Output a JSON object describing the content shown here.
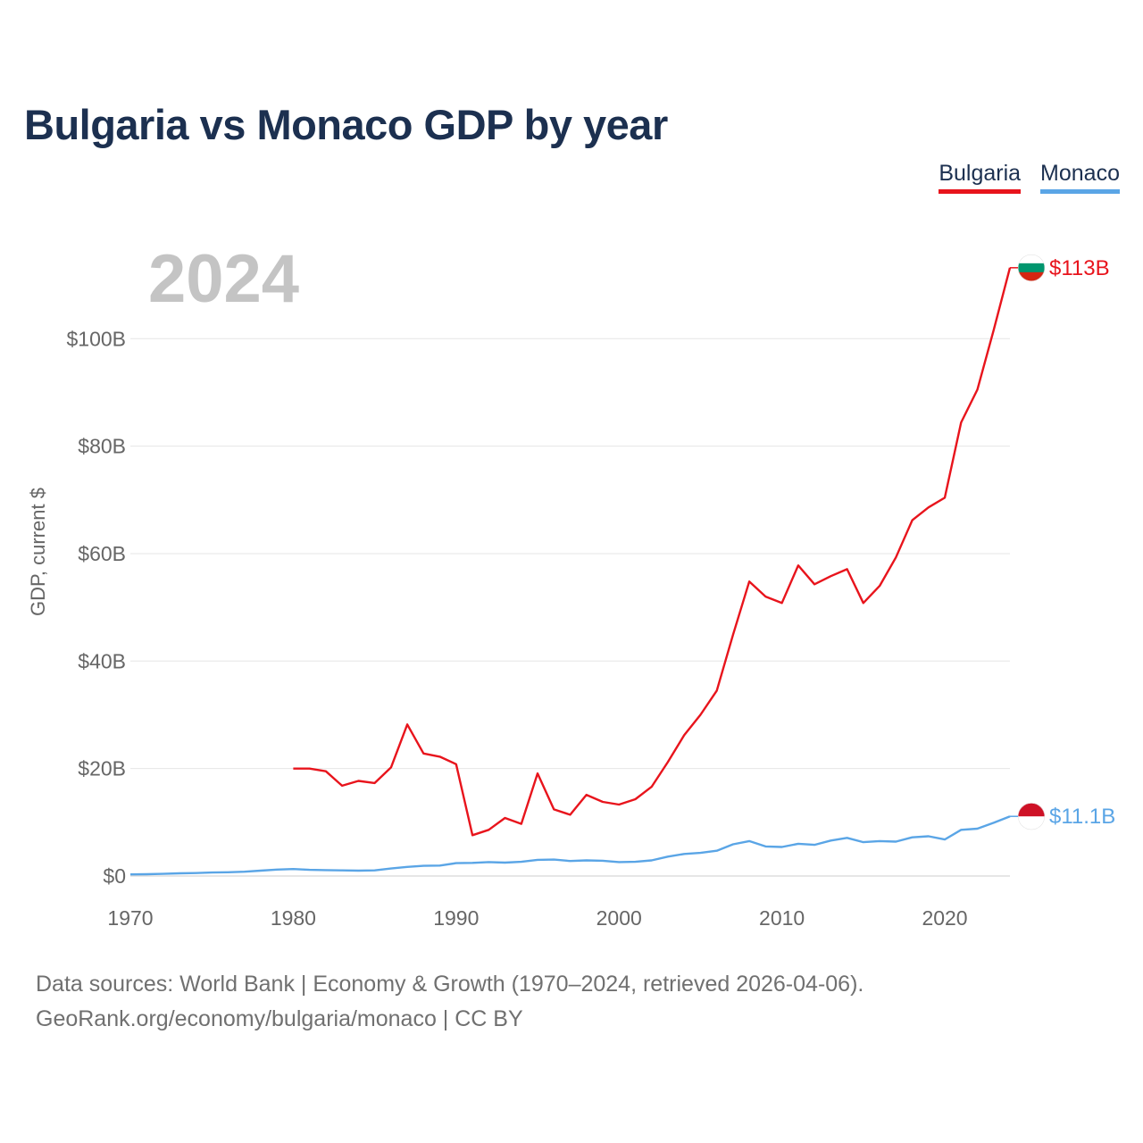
{
  "title": "Bulgaria vs Monaco GDP by year",
  "legend": [
    {
      "label": "Bulgaria",
      "color": "#e8141c"
    },
    {
      "label": "Monaco",
      "color": "#5aa5e6"
    }
  ],
  "year_label": "2024",
  "source_line1": "Data sources: World Bank | Economy & Growth (1970–2024, retrieved 2026-04-06).",
  "source_line2": "GeoRank.org/economy/bulgaria/monaco | CC BY",
  "chart_data": {
    "type": "line",
    "title": "Bulgaria vs Monaco GDP by year",
    "xlabel": "",
    "ylabel": "GDP, current $",
    "xlim": [
      1970,
      2024
    ],
    "ylim": [
      0,
      115
    ],
    "x_ticks": [
      1970,
      1980,
      1990,
      2000,
      2010,
      2020
    ],
    "y_ticks": [
      0,
      20,
      40,
      60,
      80,
      100
    ],
    "y_tick_labels": [
      "$0",
      "$20B",
      "$40B",
      "$60B",
      "$80B",
      "$100B"
    ],
    "series": [
      {
        "name": "Bulgaria",
        "color": "#e8141c",
        "end_label": "$113B",
        "flag": [
          "#ffffff",
          "#00966e",
          "#d62612"
        ],
        "x": [
          1980,
          1981,
          1982,
          1983,
          1984,
          1985,
          1986,
          1987,
          1988,
          1989,
          1990,
          1991,
          1992,
          1993,
          1994,
          1995,
          1996,
          1997,
          1998,
          1999,
          2000,
          2001,
          2002,
          2003,
          2004,
          2005,
          2006,
          2007,
          2008,
          2009,
          2010,
          2011,
          2012,
          2013,
          2014,
          2015,
          2016,
          2017,
          2018,
          2019,
          2020,
          2021,
          2022,
          2023,
          2024
        ],
        "values": [
          20.0,
          20.0,
          19.5,
          16.8,
          17.7,
          17.3,
          20.2,
          28.2,
          22.8,
          22.2,
          20.8,
          7.6,
          8.6,
          10.8,
          9.7,
          19.1,
          12.4,
          11.4,
          15.1,
          13.8,
          13.3,
          14.3,
          16.6,
          21.2,
          26.2,
          30.0,
          34.5,
          44.9,
          54.8,
          52.0,
          50.8,
          57.8,
          54.3,
          55.8,
          57.1,
          50.8,
          54.0,
          59.3,
          66.2,
          68.6,
          70.4,
          84.4,
          90.5,
          101.6,
          113.2
        ]
      },
      {
        "name": "Monaco",
        "color": "#5aa5e6",
        "end_label": "$11.1B",
        "flag": [
          "#ce1126",
          "#ffffff"
        ],
        "x": [
          1970,
          1971,
          1972,
          1973,
          1974,
          1975,
          1976,
          1977,
          1978,
          1979,
          1980,
          1981,
          1982,
          1983,
          1984,
          1985,
          1986,
          1987,
          1988,
          1989,
          1990,
          1991,
          1992,
          1993,
          1994,
          1995,
          1996,
          1997,
          1998,
          1999,
          2000,
          2001,
          2002,
          2003,
          2004,
          2005,
          2006,
          2007,
          2008,
          2009,
          2010,
          2011,
          2012,
          2013,
          2014,
          2015,
          2016,
          2017,
          2018,
          2019,
          2020,
          2021,
          2022,
          2023,
          2024
        ],
        "values": [
          0.3,
          0.34,
          0.4,
          0.5,
          0.55,
          0.65,
          0.7,
          0.8,
          1.0,
          1.2,
          1.3,
          1.15,
          1.1,
          1.05,
          1.0,
          1.05,
          1.4,
          1.7,
          1.9,
          1.95,
          2.4,
          2.45,
          2.6,
          2.5,
          2.65,
          3.0,
          3.05,
          2.8,
          2.9,
          2.85,
          2.6,
          2.65,
          2.9,
          3.6,
          4.1,
          4.3,
          4.7,
          5.9,
          6.5,
          5.5,
          5.4,
          6.0,
          5.8,
          6.6,
          7.1,
          6.3,
          6.5,
          6.4,
          7.2,
          7.4,
          6.8,
          8.6,
          8.8,
          9.9,
          11.1
        ]
      }
    ]
  }
}
